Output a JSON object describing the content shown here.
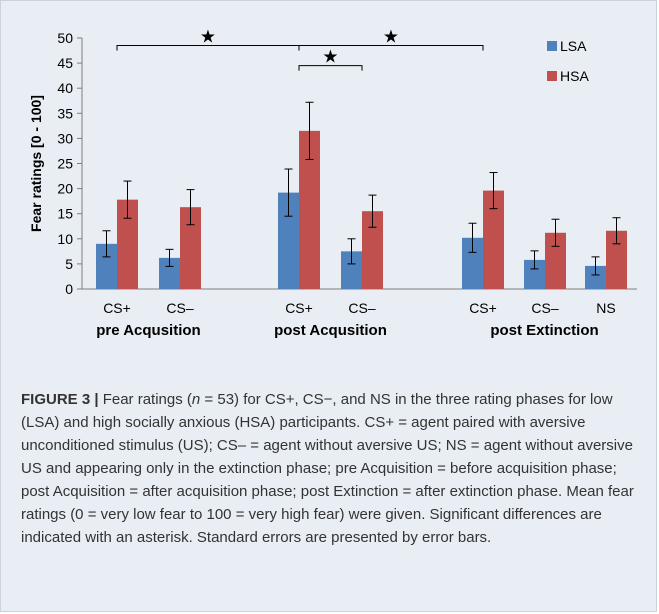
{
  "chart_data": {
    "type": "bar",
    "title": "",
    "ylabel": "Fear ratings [0 - 100]",
    "ylim": [
      0,
      50
    ],
    "yticks": [
      0,
      5,
      10,
      15,
      20,
      25,
      30,
      35,
      40,
      45,
      50
    ],
    "categories": [
      "CS+",
      "CS–",
      "CS+",
      "CS–",
      "CS+",
      "CS–",
      "NS"
    ],
    "phases": [
      {
        "label": "pre Acqusition",
        "categories": [
          0,
          1
        ]
      },
      {
        "label": "post Acqusition",
        "categories": [
          2,
          3
        ]
      },
      {
        "label": "post Extinction",
        "categories": [
          4,
          5,
          6
        ]
      }
    ],
    "series": [
      {
        "name": "LSA",
        "color": "#4f81bd",
        "values": [
          9,
          6.2,
          19.2,
          7.5,
          10.2,
          5.8,
          4.6
        ],
        "errors": [
          2.6,
          1.7,
          4.7,
          2.5,
          2.9,
          1.8,
          1.8
        ]
      },
      {
        "name": "HSA",
        "color": "#c0504d",
        "values": [
          17.8,
          16.3,
          31.5,
          15.5,
          19.6,
          11.2,
          11.6
        ],
        "errors": [
          3.7,
          3.5,
          5.7,
          3.2,
          3.6,
          2.7,
          2.6
        ]
      }
    ],
    "significance": [
      {
        "from": 0,
        "to": 2,
        "y": 48.5,
        "marker": "★"
      },
      {
        "from": 2,
        "to": 4,
        "y": 48.5,
        "marker": "★"
      },
      {
        "from": 2,
        "to": 3,
        "y": 44.5,
        "marker": "★"
      }
    ],
    "legend_position": "top-right",
    "grid": false
  },
  "caption": {
    "figure_label": "FIGURE 3 |",
    "text_before_n": " Fear ratings (",
    "n_symbol": "n",
    "text_after_n": " = 53) for CS+, CS−, and NS in the three rating phases for low (LSA) and high socially anxious (HSA) participants. CS+ = agent paired with aversive unconditioned stimulus (US); CS– = agent without aversive US; NS = agent without aversive US and appearing only in the extinction phase; pre Acquisition = before acquisition phase; post Acquisition = after acquisition phase; post Extinction = after extinction phase. Mean fear ratings (0 = very low fear to 100 = very high fear) were given. Significant differences are indicated with an asterisk. Standard errors are presented by error bars."
  }
}
